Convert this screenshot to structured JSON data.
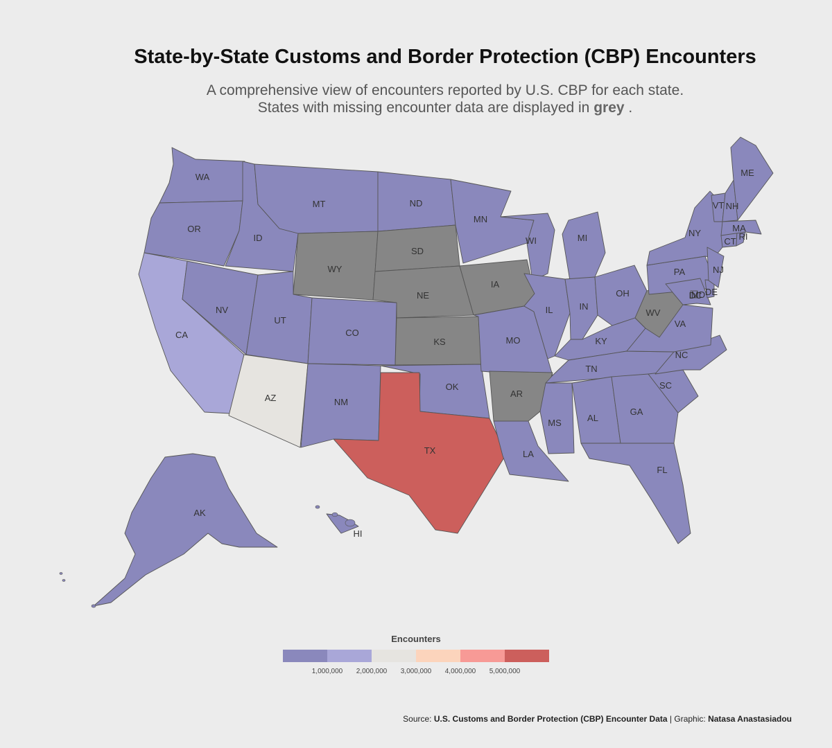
{
  "title": "State-by-State Customs and Border Protection (CBP) Encounters",
  "subtitle": {
    "line1": "A comprehensive view of encounters reported by U.S. CBP for each state.",
    "line2_prefix": "States with missing encounter data are displayed in",
    "line2_highlight": "grey",
    "line2_suffix": "."
  },
  "colors": {
    "background": "#ececec",
    "missing": "#868686",
    "bin1": "#8a88bc",
    "bin2": "#a9a7d8",
    "bin3": "#e6e4e0",
    "bin4": "#fcd4bc",
    "bin5": "#f79a96",
    "bin6": "#cc5f5c",
    "border": "#555555"
  },
  "legend": {
    "title": "Encounters",
    "ticks": [
      "1,000,000",
      "2,000,000",
      "3,000,000",
      "4,000,000",
      "5,000,000"
    ]
  },
  "states": {
    "WA": "bin1",
    "OR": "bin1",
    "CA": "bin2",
    "NV": "bin1",
    "ID": "bin1",
    "MT": "bin1",
    "WY": "missing",
    "UT": "bin1",
    "AZ": "bin3",
    "CO": "bin1",
    "NM": "bin1",
    "ND": "bin1",
    "SD": "missing",
    "NE": "missing",
    "KS": "missing",
    "OK": "bin1",
    "TX": "bin6",
    "MN": "bin1",
    "IA": "missing",
    "MO": "bin1",
    "AR": "missing",
    "LA": "bin1",
    "WI": "bin1",
    "IL": "bin1",
    "MI": "bin1",
    "IN": "bin1",
    "OH": "bin1",
    "KY": "bin1",
    "TN": "bin1",
    "MS": "bin1",
    "AL": "bin1",
    "GA": "bin1",
    "FL": "bin1",
    "SC": "bin1",
    "NC": "bin1",
    "VA": "bin1",
    "WV": "missing",
    "PA": "bin1",
    "NY": "bin1",
    "MD": "bin1",
    "DE": "bin1",
    "NJ": "bin1",
    "CT": "bin1",
    "RI": "bin1",
    "MA": "bin1",
    "VT": "bin1",
    "NH": "bin1",
    "ME": "bin1",
    "DC": "bin1",
    "AK": "bin1",
    "HI": "bin1"
  },
  "source": {
    "label": "Source:",
    "name": "U.S. Customs and Border Protection (CBP) Encounter Data",
    "graphic_label": "| Graphic:",
    "author": "Natasa Anastasiadou"
  }
}
